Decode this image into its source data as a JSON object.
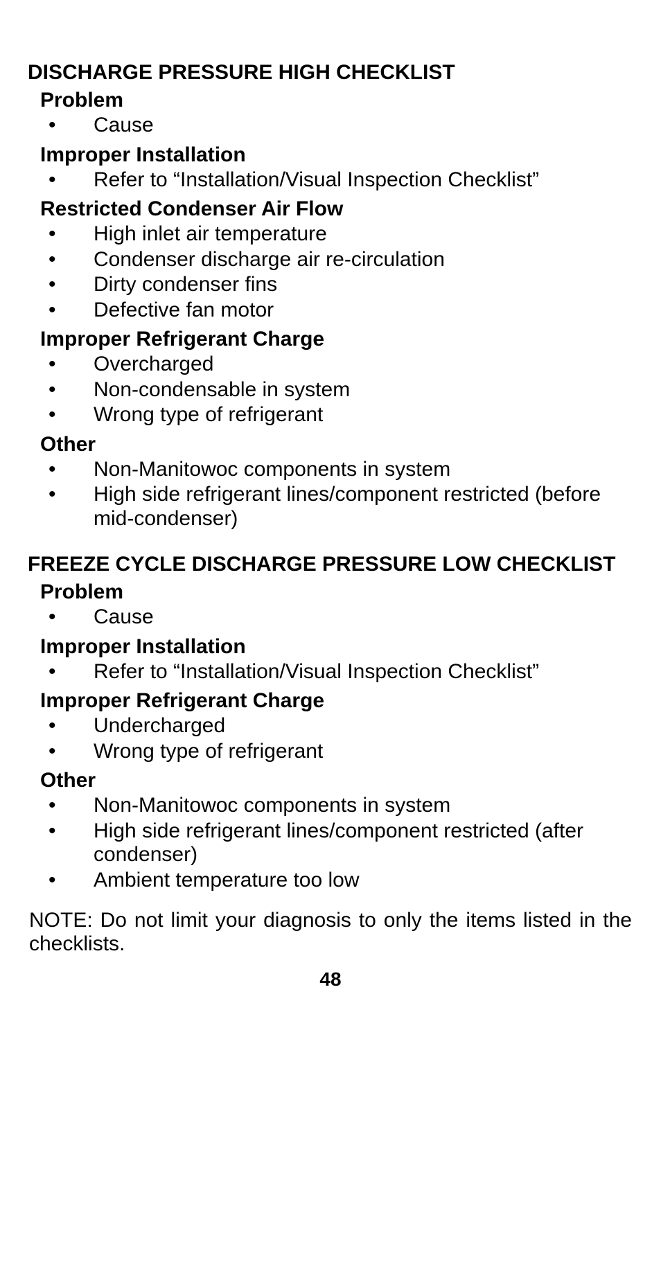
{
  "page_number": "48",
  "checklist1": {
    "title": "DISCHARGE PRESSURE HIGH CHECKLIST",
    "sections": [
      {
        "heading": "Problem",
        "items": [
          "Cause"
        ]
      },
      {
        "heading": "Improper Installation",
        "items": [
          "Refer to “Installation/Visual Inspection Checklist”"
        ]
      },
      {
        "heading": "Restricted Condenser Air Flow",
        "items": [
          "High inlet air temperature",
          "Condenser discharge air re-circulation",
          "Dirty condenser fins",
          "Defective fan motor"
        ]
      },
      {
        "heading": "Improper Refrigerant Charge",
        "items": [
          "Overcharged",
          "Non-condensable in system",
          "Wrong type of refrigerant"
        ]
      },
      {
        "heading": "Other",
        "items": [
          "Non-Manitowoc components in system",
          "High side refrigerant lines/component restricted (before mid-condenser)"
        ]
      }
    ]
  },
  "checklist2": {
    "title": "FREEZE CYCLE DISCHARGE PRESSURE LOW CHECKLIST",
    "sections": [
      {
        "heading": "Problem",
        "items": [
          "Cause"
        ]
      },
      {
        "heading": "Improper Installation",
        "items": [
          "Refer to “Installation/Visual Inspection Checklist”"
        ]
      },
      {
        "heading": "Improper Refrigerant Charge",
        "items": [
          "Undercharged",
          "Wrong type of refrigerant"
        ]
      },
      {
        "heading": "Other",
        "items": [
          "Non-Manitowoc components in system",
          "High side refrigerant lines/component restricted (after condenser)",
          "Ambient temperature too low"
        ]
      }
    ]
  },
  "note": "NOTE: Do not limit your diagnosis to only the items listed in the checklists."
}
